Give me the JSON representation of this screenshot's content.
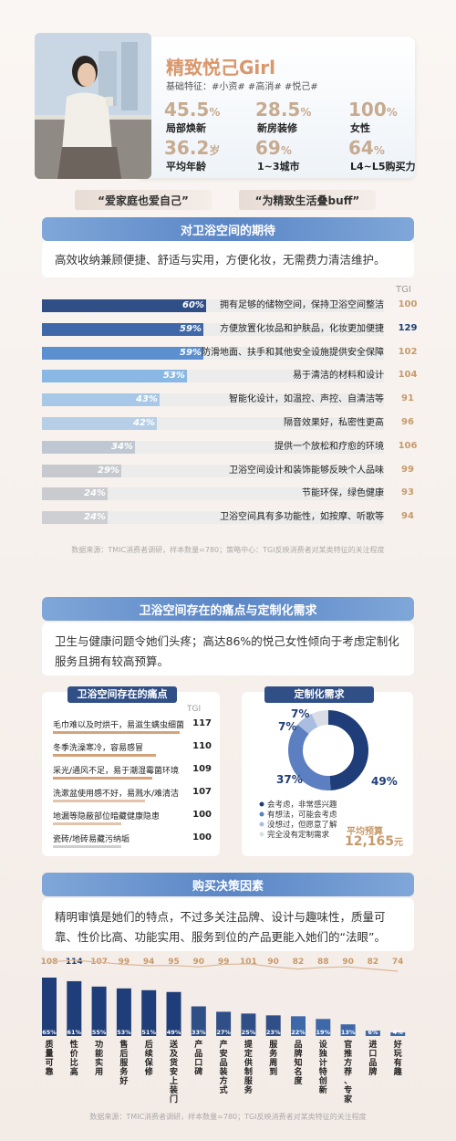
{
  "persona": {
    "title": "精致悦己Girl",
    "tags": "基础特征：#小资#  #高消#  #悦己#",
    "stats": [
      {
        "value": "45.5",
        "unit": "%",
        "label": "局部焕新"
      },
      {
        "value": "28.5",
        "unit": "%",
        "label": "新房装修"
      },
      {
        "value": "100",
        "unit": "%",
        "label": "女性"
      },
      {
        "value": "36.2",
        "unit": "岁",
        "label": "平均年龄"
      },
      {
        "value": "69",
        "unit": "%",
        "label": "1~3城市"
      },
      {
        "value": "64",
        "unit": "%",
        "label": "L4~L5购买力"
      }
    ],
    "quotes": [
      "“爱家庭也爱自己”",
      "“为精致生活叠buff”"
    ]
  },
  "expect": {
    "header": "对卫浴空间的期待",
    "summary": "高效收纳兼顾便捷、舒适与实用，方便化妆，无需费力清洁维护。",
    "tgi_header": "TGI",
    "source": "数据来源：TMIC消费者调研，样本数量=780；策略中心：TGI反映消费者对某类特征的关注程度"
  },
  "pain_section": {
    "header": "卫浴空间存在的痛点与定制化需求",
    "summary": "卫生与健康问题令她们头疼；高达86%的悦己女性倾向于考虑定制化服务且拥有较高预算。",
    "pain_header": "卫浴空间存在的痛点",
    "tgi_header": "TGI",
    "need_header": "定制化需求",
    "legend": [
      "会考虑，非常感兴趣",
      "有想法，可能会考虑",
      "没想过，但愿意了解",
      "完全没有定制需求"
    ],
    "budget_label": "平均预算",
    "budget_value": "12,165",
    "budget_unit": "元"
  },
  "buy": {
    "header": "购买决策因素",
    "summary": "精明审慎是她们的特点，不过多关注品牌、设计与趣味性，质量可靠、性价比高、功能实用、服务到位的产品更能入她们的“法眼”。",
    "source": "数据来源：TMIC消费者调研，样本数量=780；TGI反映消费者对某类特征的关注程度"
  },
  "colors": {
    "accent": "#d9976b",
    "navy": "#2f4f86",
    "blue": "#5b86c6",
    "tgi": "#c79a6a"
  },
  "chart_data": [
    {
      "type": "bar",
      "orientation": "horizontal",
      "categories": [
        "拥有足够的储物空间，保持卫浴空间整洁",
        "方便放置化妆品和护肤品，化妆更加便捷",
        "防滑地面、扶手和其他安全设施提供安全保障",
        "易于清洁的材料和设计",
        "智能化设计，如温控、声控、自清洁等",
        "隔音效果好，私密性更高",
        "提供一个放松和疗愈的环境",
        "卫浴空间设计和装饰能够反映个人品味",
        "节能环保，绿色健康",
        "卫浴空间具有多功能性，如按摩、听歌等"
      ],
      "series": [
        {
          "name": "",
          "values": [
            60,
            59,
            59,
            53,
            43,
            42,
            34,
            29,
            24,
            24
          ],
          "labels": [
            "60%",
            "59%",
            "59%",
            "53%",
            "43%",
            "42%",
            "34%",
            "29%",
            "24%",
            "24%"
          ]
        },
        {
          "name": "TGI",
          "values": [
            100,
            129,
            102,
            104,
            91,
            96,
            106,
            99,
            93,
            94
          ]
        }
      ]
    },
    {
      "type": "bar",
      "orientation": "horizontal",
      "categories": [
        "毛巾难以及时烘干，易滋生螨虫细菌",
        "冬季洗澡寒冷，容易感冒",
        "采光/通风不足，易于潮湿霉菌环境",
        "洗漱盆使用感不好，易溅水/难清洁",
        "地漏等隐蔽部位暗藏健康隐患",
        "瓷砖/地砖易藏污纳垢"
      ],
      "series": [
        {
          "name": "TGI",
          "values": [
            117,
            110,
            109,
            107,
            100,
            100
          ]
        }
      ]
    },
    {
      "type": "pie",
      "categories": [
        "会考虑，非常感兴趣",
        "有想法，可能会考虑",
        "没想过，但愿意了解",
        "完全没有定制需求"
      ],
      "values": [
        49,
        37,
        7,
        7
      ],
      "labels": [
        "49%",
        "37%",
        "7%",
        "7%"
      ],
      "colors": [
        "#1f3d78",
        "#5b7fc0",
        "#a8bde0",
        "#d9dee6"
      ]
    },
    {
      "type": "bar",
      "categories": [
        "质量可靠",
        "性价比高",
        "功能实用",
        "售后服务好",
        "后续保修",
        "送及货安上装门",
        "产品口碑",
        "产安品装方式",
        "提定供制服务",
        "服务周到",
        "品牌知名度",
        "设独计特创新",
        "官推方荐、专家",
        "进口品牌",
        "好玩有趣"
      ],
      "series": [
        {
          "name": "",
          "values": [
            65,
            61,
            55,
            53,
            51,
            49,
            33,
            27,
            25,
            23,
            22,
            19,
            13,
            6,
            4
          ],
          "labels": [
            "65%",
            "61%",
            "55%",
            "53%",
            "51%",
            "49%",
            "33%",
            "27%",
            "25%",
            "23%",
            "22%",
            "19%",
            "13%",
            "6%",
            "4%"
          ]
        },
        {
          "name": "TGI",
          "values": [
            108,
            114,
            107,
            99,
            94,
            95,
            90,
            99,
            101,
            90,
            82,
            88,
            90,
            82,
            74
          ]
        }
      ]
    }
  ]
}
